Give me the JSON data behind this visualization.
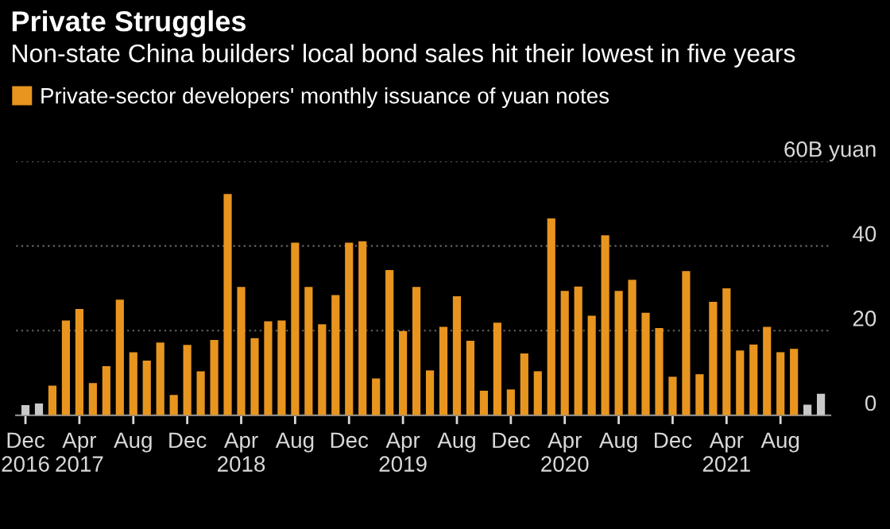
{
  "chart_data": {
    "type": "bar",
    "title": "Private Struggles",
    "subtitle": "Non-state China builders' local bond sales hit their lowest in five years",
    "categories": [
      "Dec\n2016",
      null,
      null,
      null,
      "Apr\n2017",
      null,
      null,
      null,
      "Aug",
      null,
      null,
      null,
      "Dec",
      null,
      null,
      null,
      "Apr\n2018",
      null,
      null,
      null,
      "Aug",
      null,
      null,
      null,
      "Dec",
      null,
      null,
      null,
      "Apr\n2019",
      null,
      null,
      null,
      "Aug",
      null,
      null,
      null,
      "Dec",
      null,
      null,
      null,
      "Apr\n2020",
      null,
      null,
      null,
      "Aug",
      null,
      null,
      null,
      "Dec",
      null,
      null,
      null,
      "Apr\n2021",
      null,
      null,
      null,
      "Aug",
      null,
      null,
      null
    ],
    "series": [
      {
        "name": "Private-sector developers' monthly issuance of yuan notes",
        "color": "#e8951f",
        "colors": [
          "#c8c8c8",
          "#c8c8c8",
          "#e8951f",
          "#e8951f",
          "#e8951f",
          "#e8951f",
          "#e8951f",
          "#e8951f",
          "#e8951f",
          "#e8951f",
          "#e8951f",
          "#e8951f",
          "#e8951f",
          "#e8951f",
          "#e8951f",
          "#e8951f",
          "#e8951f",
          "#e8951f",
          "#e8951f",
          "#e8951f",
          "#e8951f",
          "#e8951f",
          "#e8951f",
          "#e8951f",
          "#e8951f",
          "#e8951f",
          "#e8951f",
          "#e8951f",
          "#e8951f",
          "#e8951f",
          "#e8951f",
          "#e8951f",
          "#e8951f",
          "#e8951f",
          "#e8951f",
          "#e8951f",
          "#e8951f",
          "#e8951f",
          "#e8951f",
          "#e8951f",
          "#e8951f",
          "#e8951f",
          "#e8951f",
          "#e8951f",
          "#e8951f",
          "#e8951f",
          "#e8951f",
          "#e8951f",
          "#e8951f",
          "#e8951f",
          "#e8951f",
          "#e8951f",
          "#e8951f",
          "#e8951f",
          "#e8951f",
          "#e8951f",
          "#e8951f",
          "#e8951f",
          "#c8c8c8",
          "#c8c8c8"
        ],
        "values": [
          2.4,
          2.8,
          7.0,
          22.4,
          25.1,
          7.6,
          11.6,
          27.3,
          14.9,
          12.9,
          17.2,
          4.8,
          16.6,
          10.4,
          17.8,
          52.3,
          30.3,
          18.2,
          22.2,
          22.4,
          40.8,
          30.3,
          21.5,
          28.4,
          40.8,
          41.1,
          8.7,
          34.3,
          19.9,
          30.3,
          10.6,
          20.9,
          28.1,
          17.6,
          5.8,
          21.9,
          6.1,
          14.6,
          10.4,
          46.5,
          29.4,
          30.4,
          23.5,
          42.5,
          29.4,
          32.0,
          24.2,
          20.6,
          9.1,
          34.1,
          9.7,
          26.8,
          30.0,
          15.3,
          16.7,
          20.9,
          14.9,
          15.7,
          2.5,
          5.1
        ]
      }
    ],
    "ylim": [
      0,
      60
    ],
    "yticks": [
      0,
      20,
      40,
      {
        "value": 60,
        "label": "60B yuan"
      }
    ],
    "grid": "y",
    "legend": "top left"
  }
}
